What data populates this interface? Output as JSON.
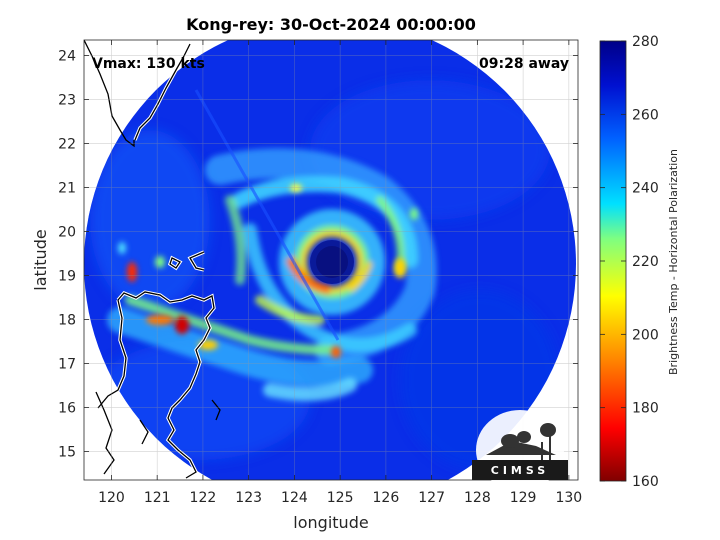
{
  "title": "Kong-rey: 30-Oct-2024 00:00:00",
  "vmax_label": "Vmax: 130 kts",
  "time_away": "09:28 away",
  "xlabel": "longitude",
  "ylabel": "latitude",
  "x_ticks": [
    "120",
    "121",
    "122",
    "123",
    "124",
    "125",
    "126",
    "127",
    "128",
    "129",
    "130"
  ],
  "y_ticks": [
    "24",
    "23",
    "22",
    "21",
    "20",
    "19",
    "18",
    "17",
    "16",
    "15"
  ],
  "colorbar": {
    "label": "Brightness Temp - Horizontal Polarization",
    "ticks": [
      "280",
      "260",
      "240",
      "220",
      "200",
      "180",
      "160"
    ],
    "range": [
      160,
      280
    ]
  },
  "logo_text": "CIMSS",
  "storm": {
    "name": "Kong-rey",
    "eye_center_lon": 124.85,
    "eye_center_lat": 19.35
  },
  "map_extent": {
    "lon": [
      119.4,
      130.2
    ],
    "lat": [
      14.35,
      24.35
    ]
  }
}
